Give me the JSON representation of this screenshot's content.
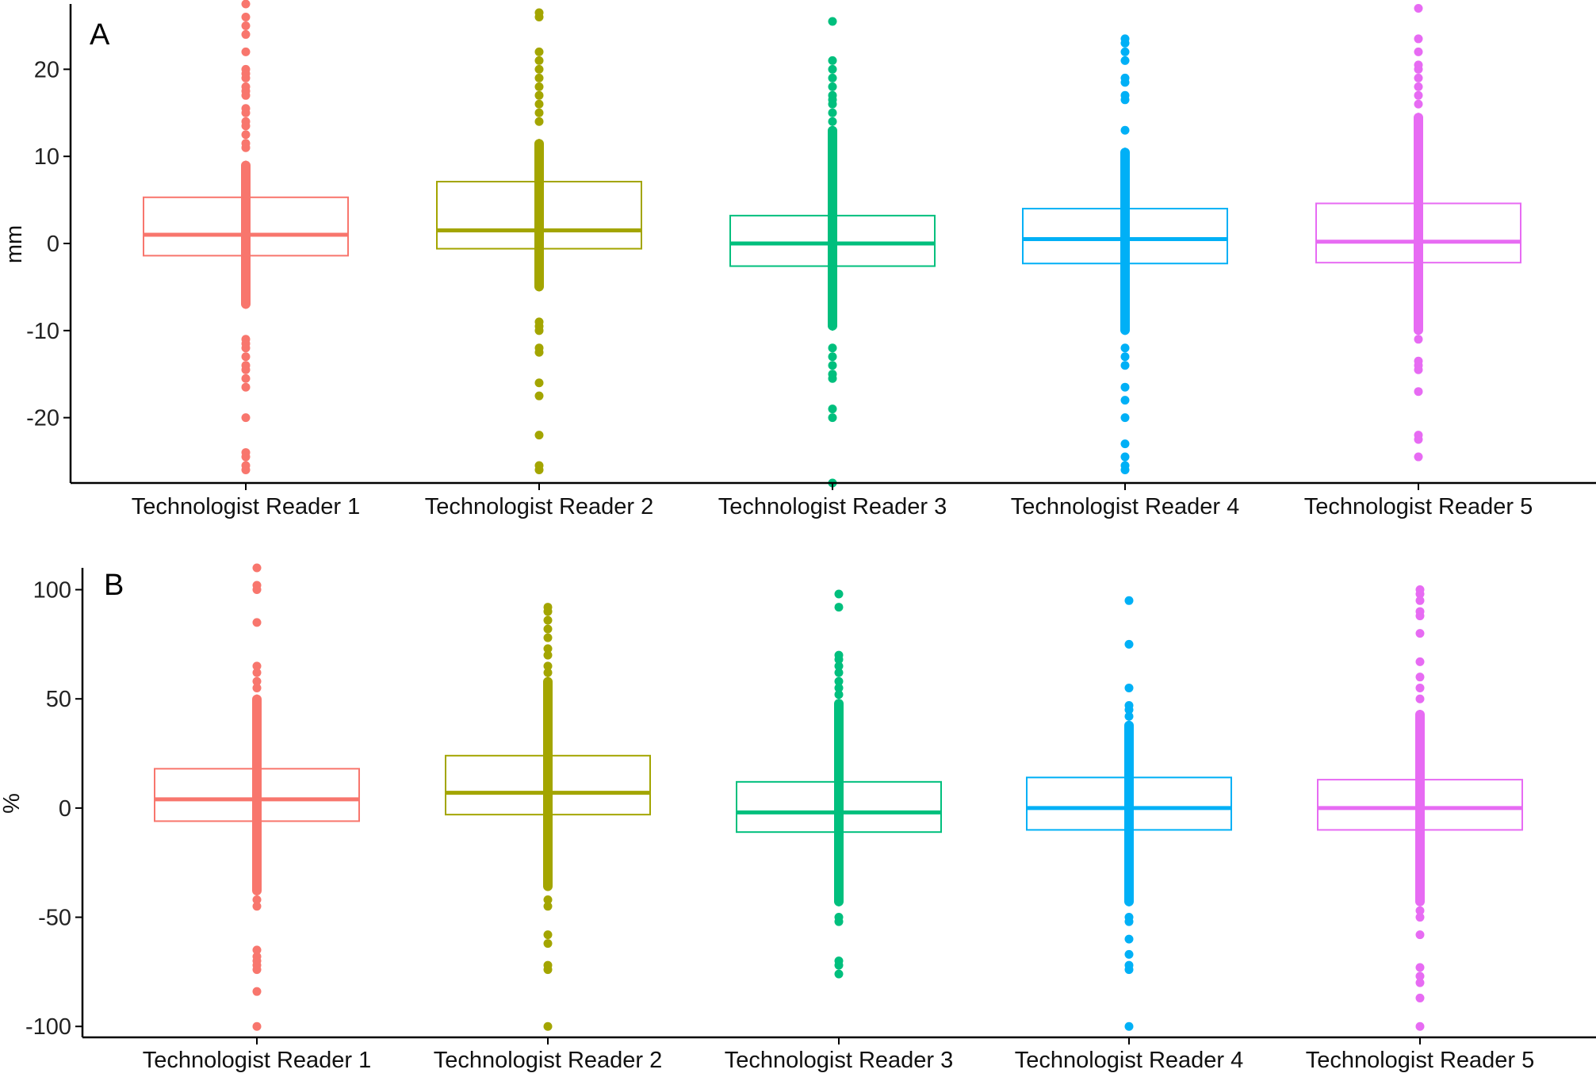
{
  "chart_data": [
    {
      "type": "boxplot",
      "panel_label": "A",
      "ylabel": "mm",
      "xlabel": "",
      "ylim": [
        -27.5,
        27.5
      ],
      "yticks": [
        -20,
        -10,
        0,
        10,
        20
      ],
      "ytick_labels": [
        "-20",
        "-10",
        "0",
        "10",
        "20"
      ],
      "categories": [
        "Technologist Reader 1",
        "Technologist Reader 2",
        "Technologist Reader 3",
        "Technologist Reader 4",
        "Technologist Reader 5"
      ],
      "colors": [
        "#F8766D",
        "#A3A500",
        "#00BF7D",
        "#00B0F6",
        "#E76BF3"
      ],
      "boxes": [
        {
          "q1": -1.4,
          "median": 1.0,
          "q3": 5.3,
          "whisker_low": -7.5,
          "whisker_high": 9.5
        },
        {
          "q1": -0.6,
          "median": 1.5,
          "q3": 7.1,
          "whisker_low": -5.5,
          "whisker_high": 12.0
        },
        {
          "q1": -2.6,
          "median": 0.0,
          "q3": 3.2,
          "whisker_low": -10.0,
          "whisker_high": 13.5
        },
        {
          "q1": -2.3,
          "median": 0.5,
          "q3": 4.0,
          "whisker_low": -10.5,
          "whisker_high": 11.0
        },
        {
          "q1": -2.2,
          "median": 0.2,
          "q3": 4.6,
          "whisker_low": -10.5,
          "whisker_high": 15.0
        }
      ],
      "points": [
        [
          -26,
          -25.5,
          -24.5,
          -24,
          -20,
          -16.5,
          -15.5,
          -14.5,
          -14,
          -13,
          -12,
          -11.5,
          -11,
          11,
          11.5,
          12.5,
          13.5,
          14,
          15,
          15.5,
          17,
          17.5,
          18,
          19,
          19.5,
          20,
          22,
          24,
          25,
          26,
          27.5
        ],
        [
          -26,
          -25.5,
          -22,
          -17.5,
          -16,
          -12.5,
          -12,
          -10,
          -9.5,
          -9,
          14,
          15,
          16,
          17,
          18,
          19,
          20,
          21,
          22,
          26,
          26.5
        ],
        [
          -27.5,
          -20,
          -19,
          -15.5,
          -15,
          -14,
          -13,
          -12,
          14,
          15,
          16,
          16.5,
          17,
          18,
          19,
          20,
          21,
          25.5
        ],
        [
          -26,
          -25.5,
          -24.5,
          -23,
          -20,
          -18,
          -16.5,
          -14,
          -13,
          -12,
          13,
          16.5,
          17,
          18.5,
          19,
          21,
          22,
          23,
          23.5
        ],
        [
          -24.5,
          -22.5,
          -22,
          -17,
          -14.5,
          -14,
          -13.5,
          -11,
          16,
          17,
          18,
          19,
          20,
          20.5,
          22,
          23.5,
          27
        ]
      ]
    },
    {
      "type": "boxplot",
      "panel_label": "B",
      "ylabel": "%",
      "xlabel": "",
      "ylim": [
        -105,
        110
      ],
      "yticks": [
        -100,
        -50,
        0,
        50,
        100
      ],
      "ytick_labels": [
        "-100",
        "-50",
        "0",
        "50",
        "100"
      ],
      "categories": [
        "Technologist Reader 1",
        "Technologist Reader 2",
        "Technologist Reader 3",
        "Technologist Reader 4",
        "Technologist Reader 5"
      ],
      "colors": [
        "#F8766D",
        "#A3A500",
        "#00BF7D",
        "#00B0F6",
        "#E76BF3"
      ],
      "boxes": [
        {
          "q1": -6,
          "median": 4,
          "q3": 18,
          "whisker_low": -40,
          "whisker_high": 52
        },
        {
          "q1": -3,
          "median": 7,
          "q3": 24,
          "whisker_low": -38,
          "whisker_high": 60
        },
        {
          "q1": -11,
          "median": -2,
          "q3": 12,
          "whisker_low": -45,
          "whisker_high": 50
        },
        {
          "q1": -10,
          "median": 0,
          "q3": 14,
          "whisker_low": -45,
          "whisker_high": 40
        },
        {
          "q1": -10,
          "median": 0,
          "q3": 13,
          "whisker_low": -45,
          "whisker_high": 45
        }
      ],
      "points": [
        [
          -100,
          -84,
          -74,
          -72,
          -70,
          -68,
          -65,
          -45,
          -42,
          55,
          58,
          62,
          65,
          85,
          100,
          102,
          110
        ],
        [
          -100,
          -74,
          -72,
          -62,
          -58,
          -45,
          -42,
          62,
          65,
          70,
          73,
          78,
          82,
          86,
          90,
          92
        ],
        [
          -76,
          -72,
          -70,
          -52,
          -50,
          52,
          55,
          58,
          62,
          65,
          68,
          70,
          92,
          98
        ],
        [
          -100,
          -74,
          -72,
          -67,
          -60,
          -52,
          -50,
          42,
          45,
          47,
          55,
          75,
          95
        ],
        [
          -100,
          -87,
          -80,
          -77,
          -73,
          -58,
          -50,
          -47,
          50,
          55,
          60,
          67,
          80,
          88,
          90,
          95,
          98,
          100
        ]
      ]
    }
  ]
}
